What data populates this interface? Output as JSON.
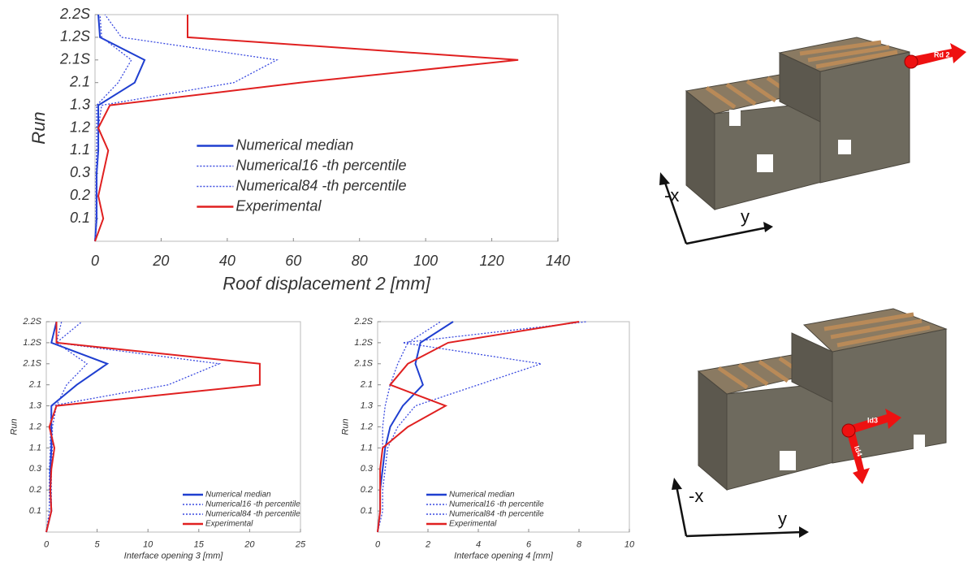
{
  "chart_data": [
    {
      "type": "line",
      "xlabel": "Roof displacement 2 [mm]",
      "ylabel": "Run",
      "categories": [
        null,
        "0.1",
        "0.2",
        "0.3",
        "1.1",
        "1.2",
        "1.3",
        "2.1",
        "2.1S",
        "1.2S",
        "2.2S"
      ],
      "xlim": [
        0,
        140
      ],
      "xticks": [
        0,
        20,
        40,
        60,
        80,
        100,
        120,
        140
      ],
      "legend": "lower center",
      "series": [
        {
          "name": "Numerical median",
          "color": "#1f3fd0",
          "style": "solid",
          "values": [
            0,
            0.5,
            0.5,
            0.5,
            1,
            1,
            1,
            12,
            15,
            1.5,
            1
          ]
        },
        {
          "name": "Numerical16 -th percentile",
          "color": "#3a4ae0",
          "style": "dotted",
          "values": [
            0,
            0.3,
            0.3,
            0.3,
            0.5,
            0.5,
            0.5,
            7,
            11,
            2,
            1.5
          ]
        },
        {
          "name": "Numerical84 -th percentile",
          "color": "#3a4ae0",
          "style": "dotted",
          "values": [
            0,
            0.5,
            0.5,
            0.5,
            1,
            1,
            2,
            42,
            55,
            8,
            3
          ]
        },
        {
          "name": "Experimental",
          "color": "#e02020",
          "style": "solid",
          "values": [
            0,
            2.5,
            1,
            2.5,
            4,
            1,
            4.5,
            62,
            128,
            28,
            28
          ]
        }
      ]
    },
    {
      "type": "line",
      "xlabel": "Interface opening 3 [mm]",
      "ylabel": "Run",
      "categories": [
        null,
        "0.1",
        "0.2",
        "0.3",
        "1.1",
        "1.2",
        "1.3",
        "2.1",
        "2.1S",
        "1.2S",
        "2.2S"
      ],
      "xlim": [
        0,
        25
      ],
      "xticks": [
        0,
        5,
        10,
        15,
        20,
        25
      ],
      "legend": "lower right",
      "series": [
        {
          "name": "Numerical median",
          "color": "#1f3fd0",
          "style": "solid",
          "values": [
            0,
            0.5,
            0.4,
            0.4,
            0.5,
            0.5,
            0.5,
            3,
            6,
            0.5,
            1
          ]
        },
        {
          "name": "Numerical16 -th percentile",
          "color": "#3a4ae0",
          "style": "dotted",
          "values": [
            0,
            0.3,
            0.3,
            0.3,
            0.4,
            0.4,
            0.5,
            12,
            17,
            1,
            1.5
          ]
        },
        {
          "name": "Numerical84 -th percentile",
          "color": "#3a4ae0",
          "style": "dotted",
          "values": [
            0,
            0.5,
            0.5,
            0.5,
            0.6,
            0.6,
            1,
            2,
            4,
            1,
            3.5
          ]
        },
        {
          "name": "Experimental",
          "color": "#e02020",
          "style": "solid",
          "values": [
            0,
            0.5,
            0.4,
            0.5,
            0.8,
            0.3,
            1,
            21,
            21,
            1,
            1
          ]
        }
      ]
    },
    {
      "type": "line",
      "xlabel": "Interface opening 4 [mm]",
      "ylabel": "Run",
      "categories": [
        null,
        "0.1",
        "0.2",
        "0.3",
        "1.1",
        "1.2",
        "1.3",
        "2.1",
        "2.1S",
        "1.2S",
        "2.2S"
      ],
      "xlim": [
        0,
        10
      ],
      "xticks": [
        0,
        2,
        4,
        6,
        8,
        10
      ],
      "legend": "lower left",
      "series": [
        {
          "name": "Numerical median",
          "color": "#1f3fd0",
          "style": "solid",
          "values": [
            0,
            0.1,
            0.1,
            0.2,
            0.3,
            0.5,
            1,
            1.8,
            1.5,
            1.7,
            3
          ]
        },
        {
          "name": "Numerical16 -th percentile",
          "color": "#3a4ae0",
          "style": "dotted",
          "values": [
            0,
            0.2,
            0.2,
            0.3,
            0.4,
            0.8,
            1.5,
            4,
            6.5,
            1,
            8.3
          ]
        },
        {
          "name": "Numerical84 -th percentile",
          "color": "#3a4ae0",
          "style": "dotted",
          "values": [
            0,
            0.1,
            0.1,
            0.1,
            0.2,
            0.2,
            0.3,
            0.5,
            0.8,
            1.2,
            2.5
          ]
        },
        {
          "name": "Experimental",
          "color": "#e02020",
          "style": "solid",
          "values": [
            0,
            0.1,
            0.1,
            0.1,
            0.2,
            1.2,
            2.7,
            0.5,
            1.2,
            2.8,
            8
          ]
        }
      ]
    }
  ],
  "diagrams": [
    {
      "arrow_labels": [
        "Rd 2"
      ],
      "axes": [
        "-x",
        "y"
      ]
    },
    {
      "arrow_labels": [
        "Id3",
        "Id4"
      ],
      "axes": [
        "-x",
        "y"
      ]
    }
  ]
}
